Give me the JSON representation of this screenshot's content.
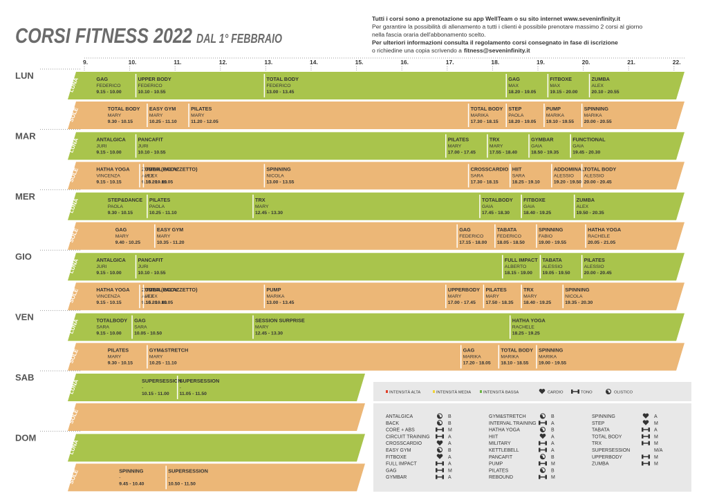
{
  "header": {
    "title": "CORSI FITNESS 2022",
    "subtitle": "DAL 1° FEBBRAIO"
  },
  "info": [
    {
      "text": "Tutti i corsi sono a prenotazione su app WellTeam o su sito internet www.seveninfinity.it",
      "bold": true
    },
    {
      "text": "Per garantire la possibilità di allenamento a tutti i clienti è possibile prenotare massimo 2 corsi al giorno",
      "bold": false
    },
    {
      "text": "nella fascia oraria dell'abbonamento scelto.",
      "bold": false
    },
    {
      "text": "Per ulteriori informazioni consulta il regolamento corsi consegnato in fase di iscrizione",
      "bold": true
    },
    {
      "text": "o richiedine una copia scrivendo a",
      "bold": false
    }
  ],
  "email": "fitness@seveninfinity.it",
  "hours": [
    "9.",
    "10.",
    "11.",
    "12.",
    "13.",
    "14.",
    "15.",
    "16.",
    "17.",
    "18.",
    "19.",
    "20.",
    "21.",
    "22."
  ],
  "days": [
    {
      "name": "LUN",
      "rows": [
        {
          "label": "LUNA",
          "color": "#a9c44c",
          "classes": [
            {
              "name": "GAG",
              "teacher": "FEDERICO",
              "time": "9.15 - 10.00"
            },
            {
              "name": "UPPER BODY",
              "teacher": "FEDERICO",
              "time": "10.10 - 10.55"
            },
            {
              "name": "TOTAL BODY",
              "teacher": "FEDERICO",
              "time": "13.00 - 13.45"
            },
            {
              "name": "GAG",
              "teacher": "MAX",
              "time": "18.20 - 19.05"
            },
            {
              "name": "FITBOXE",
              "teacher": "MAX",
              "time": "19.15 - 20.00"
            },
            {
              "name": "ZUMBA",
              "teacher": "ALEX",
              "time": "20.10 - 20.55"
            }
          ]
        },
        {
          "label": "SOLE",
          "color": "#ecb777",
          "classes": [
            {
              "name": "TOTAL BODY",
              "teacher": "MARY",
              "time": "9.30 - 10.15"
            },
            {
              "name": "EASY GYM",
              "teacher": "MARY",
              "time": "10.25 - 11.10"
            },
            {
              "name": "PILATES",
              "teacher": "MARY",
              "time": "11.20 - 12.05"
            },
            {
              "name": "TOTAL BODY",
              "teacher": "MARIKA",
              "time": "17.30 - 18.15"
            },
            {
              "name": "STEP",
              "teacher": "PAOLA",
              "time": "18.20 - 19.05"
            },
            {
              "name": "PUMP",
              "teacher": "MARIKA",
              "time": "19.10 - 19.55"
            },
            {
              "name": "SPINNING",
              "teacher": "MARIKA",
              "time": "20.00 - 20.55"
            }
          ]
        }
      ]
    },
    {
      "name": "MAR",
      "rows": [
        {
          "label": "LUNA",
          "color": "#a9c44c",
          "classes": [
            {
              "name": "ANTALGICA",
              "teacher": "JURI",
              "time": "9.15 - 10.00"
            },
            {
              "name": "PANCAFIT",
              "teacher": "JURI",
              "time": "10.10 - 10.55"
            },
            {
              "name": "PILATES",
              "teacher": "MARY",
              "time": "17.00 - 17.45"
            },
            {
              "name": "TRX",
              "teacher": "MARY",
              "time": "17.55 - 18.40"
            },
            {
              "name": "GYMBAR",
              "teacher": "GAIA",
              "time": "18.50 - 19.35"
            },
            {
              "name": "FUNCTIONAL",
              "teacher": "GAIA",
              "time": "19.45 - 20.30"
            }
          ]
        },
        {
          "label": "SOLE",
          "color": "#ecb777",
          "classes": [
            {
              "name": "HATHA YOGA",
              "teacher": "VINCENZA",
              "time": "9.15 - 10.15"
            },
            {
              "name": "ZUMBA (PALAZZETTO)",
              "teacher": "ALEX",
              "time": "9.15 - 10.00"
            },
            {
              "name": "TOTAL BODY",
              "teacher": "ALEX",
              "time": "10.20 - 11.05"
            },
            {
              "name": "SPINNING",
              "teacher": "NICOLA",
              "time": "13.00 - 13.55"
            },
            {
              "name": "CROSSCARDIO",
              "teacher": "SARA",
              "time": "17.30 - 18.15"
            },
            {
              "name": "HIIT",
              "teacher": "SARA",
              "time": "18.25 - 19.10"
            },
            {
              "name": "ADDOMINALI",
              "teacher": "ALESSIO",
              "time": "19.20 - 19.50"
            },
            {
              "name": "TOTAL BODY",
              "teacher": "ALESSIO",
              "time": "20.00 - 20.45"
            }
          ]
        }
      ]
    },
    {
      "name": "MER",
      "rows": [
        {
          "label": "LUNA",
          "color": "#a9c44c",
          "classes": [
            {
              "name": "STEP&DANCE",
              "teacher": "PAOLA",
              "time": "9.30 - 10.15"
            },
            {
              "name": "PILATES",
              "teacher": "PAOLA",
              "time": "10.25 - 11.10"
            },
            {
              "name": "TRX",
              "teacher": "MARY",
              "time": "12.45 - 13.30"
            },
            {
              "name": "TOTALBODY",
              "teacher": "GAIA",
              "time": "17.45 - 18.30"
            },
            {
              "name": "FITBOXE",
              "teacher": "GAIA",
              "time": "18.40 - 19.25"
            },
            {
              "name": "ZUMBA",
              "teacher": "ALEX",
              "time": "19.50 - 20.35"
            }
          ]
        },
        {
          "label": "SOLE",
          "color": "#ecb777",
          "classes": [
            {
              "name": "GAG",
              "teacher": "MARY",
              "time": "9.40 - 10.25"
            },
            {
              "name": "EASY GYM",
              "teacher": "MARY",
              "time": "10.35 - 11.20"
            },
            {
              "name": "GAG",
              "teacher": "FEDERICO",
              "time": "17.15 - 18.00"
            },
            {
              "name": "TABATA",
              "teacher": "FEDERICO",
              "time": "18.05 - 18.50"
            },
            {
              "name": "SPINNING",
              "teacher": "FABIO",
              "time": "19.00 - 19.55"
            },
            {
              "name": "HATHA YOGA",
              "teacher": "RACHELE",
              "time": "20.05 - 21.05"
            }
          ]
        }
      ]
    },
    {
      "name": "GIO",
      "rows": [
        {
          "label": "LUNA",
          "color": "#a9c44c",
          "classes": [
            {
              "name": "ANTALGICA",
              "teacher": "JURI",
              "time": "9.15 - 10.00"
            },
            {
              "name": "PANCAFIT",
              "teacher": "JURI",
              "time": "10.10 - 10.55"
            },
            {
              "name": "FULL IMPACT",
              "teacher": "ALBERTO",
              "time": "18.15 - 19.00"
            },
            {
              "name": "TABATA",
              "teacher": "ALESSIO",
              "time": "19.05 - 19.50"
            },
            {
              "name": "PILATES",
              "teacher": "ALESSIO",
              "time": "20.00 - 20.45"
            }
          ]
        },
        {
          "label": "SOLE",
          "color": "#ecb777",
          "classes": [
            {
              "name": "HATHA YOGA",
              "teacher": "VINCENZA",
              "time": "9.15 - 10.15"
            },
            {
              "name": "ZUMBA (PALAZZETTO)",
              "teacher": "ALEX",
              "time": "9.15 - 10.00"
            },
            {
              "name": "TOTAL BODY",
              "teacher": "ALEX",
              "time": "10.20 - 11.05"
            },
            {
              "name": "PUMP",
              "teacher": "MARIKA",
              "time": "13.00 - 13.45"
            },
            {
              "name": "UPPERBODY",
              "teacher": "MARY",
              "time": "17.00 - 17.45"
            },
            {
              "name": "PILATES",
              "teacher": "MARY",
              "time": "17.50 - 18.35"
            },
            {
              "name": "TRX",
              "teacher": "MARY",
              "time": "18.40 - 19.25"
            },
            {
              "name": "SPINNING",
              "teacher": "NICOLA",
              "time": "19.35 - 20.30"
            }
          ]
        }
      ]
    },
    {
      "name": "VEN",
      "rows": [
        {
          "label": "LUNA",
          "color": "#a9c44c",
          "classes": [
            {
              "name": "TOTALBODY",
              "teacher": "SARA",
              "time": "9.15 - 10.00"
            },
            {
              "name": "GAG",
              "teacher": "SARA",
              "time": "10.05 - 10.50"
            },
            {
              "name": "SESSION SURPRISE",
              "teacher": "MARY",
              "time": "12.45 - 13.30"
            },
            {
              "name": "HATHA YOGA",
              "teacher": "RACHELE",
              "time": "18.25 - 19.25"
            }
          ]
        },
        {
          "label": "SOLE",
          "color": "#ecb777",
          "classes": [
            {
              "name": "PILATES",
              "teacher": "MARY",
              "time": "9.30 - 10.15"
            },
            {
              "name": "GYM&STRETCH",
              "teacher": "MARY",
              "time": "10.25 - 11.10"
            },
            {
              "name": "GAG",
              "teacher": "MARIKA",
              "time": "17.20 - 18.05"
            },
            {
              "name": "TOTAL BODY",
              "teacher": "MARIKA",
              "time": "18.10 - 18.55"
            },
            {
              "name": "SPINNING",
              "teacher": "MARIKA",
              "time": "19.00 - 19.55"
            }
          ]
        }
      ]
    },
    {
      "name": "SAB",
      "rows": [
        {
          "label": "LUNA",
          "color": "#a9c44c",
          "classes": [
            {
              "name": "SUPERSESSION",
              "teacher": "-",
              "time": "10.15 - 11.00"
            },
            {
              "name": "SUPERSESSION",
              "teacher": "-",
              "time": "11.05 - 11.50"
            }
          ]
        },
        {
          "label": "SOLE",
          "color": "#ecb777",
          "classes": []
        }
      ]
    },
    {
      "name": "DOM",
      "rows": [
        {
          "label": "LUNA",
          "color": "#a9c44c",
          "classes": []
        },
        {
          "label": "SOLE",
          "color": "#ecb777",
          "classes": [
            {
              "name": "SPINNING",
              "teacher": "-",
              "time": "9.45 - 10.40"
            },
            {
              "name": "SUPERSESSION",
              "teacher": "-",
              "time": "10.50 - 11.50"
            }
          ]
        }
      ]
    }
  ],
  "legend": {
    "intensity": [
      {
        "label": "INTENSITÀ ALTA",
        "color": "#e0402a"
      },
      {
        "label": "INTENSITÀ MEDIA",
        "color": "#f2d43a"
      },
      {
        "label": "INTENSITÀ BASSA",
        "color": "#6cb545"
      }
    ],
    "kinds": [
      {
        "label": "CARDIO",
        "icon": "cardio"
      },
      {
        "label": "TONO",
        "icon": "tono"
      },
      {
        "label": "OLISTICO",
        "icon": "olistico"
      }
    ],
    "courses": [
      {
        "name": "ANTALGICA",
        "icon": "olistico",
        "level": "B"
      },
      {
        "name": "BACK",
        "icon": "olistico",
        "level": "B"
      },
      {
        "name": "CORE + ABS",
        "icon": "tono",
        "level": "M"
      },
      {
        "name": "CIRCUIT TRAINING",
        "icon": "tono",
        "level": "A"
      },
      {
        "name": "CROSSCARDIO",
        "icon": "cardio",
        "level": "A"
      },
      {
        "name": "EASY GYM",
        "icon": "olistico",
        "level": "B"
      },
      {
        "name": "FITBOXE",
        "icon": "cardio",
        "level": "A"
      },
      {
        "name": "FULL IMPACT",
        "icon": "tono",
        "level": "A"
      },
      {
        "name": "GAG",
        "icon": "tono",
        "level": "M"
      },
      {
        "name": "GYMBAR",
        "icon": "tono",
        "level": "A"
      },
      {
        "name": "GYM&STRETCH",
        "icon": "olistico",
        "level": "B"
      },
      {
        "name": "INTERVAL TRAINING",
        "icon": "tono",
        "level": "A"
      },
      {
        "name": "HATHA YOGA",
        "icon": "olistico",
        "level": "B"
      },
      {
        "name": "HIIT",
        "icon": "cardio",
        "level": "A"
      },
      {
        "name": "MILITARY",
        "icon": "tono",
        "level": "A"
      },
      {
        "name": "KETTLEBELL",
        "icon": "tono",
        "level": "A"
      },
      {
        "name": "PANCAFIT",
        "icon": "olistico",
        "level": "B"
      },
      {
        "name": "PUMP",
        "icon": "tono",
        "level": "M"
      },
      {
        "name": "PILATES",
        "icon": "olistico",
        "level": "B"
      },
      {
        "name": "REBOUND",
        "icon": "tono",
        "level": "M"
      },
      {
        "name": "SPINNING",
        "icon": "cardio",
        "level": "A"
      },
      {
        "name": "STEP",
        "icon": "cardio",
        "level": "M"
      },
      {
        "name": "TABATA",
        "icon": "tono",
        "level": "A"
      },
      {
        "name": "TOTAL BODY",
        "icon": "tono",
        "level": "M"
      },
      {
        "name": "TRX",
        "icon": "tono",
        "level": "M"
      },
      {
        "name": "SUPERSESSION",
        "icon": null,
        "level": "M/A"
      },
      {
        "name": "UPPERBODY",
        "icon": "tono",
        "level": "M"
      },
      {
        "name": "ZUMBA",
        "icon": "tono",
        "level": "M"
      }
    ]
  }
}
